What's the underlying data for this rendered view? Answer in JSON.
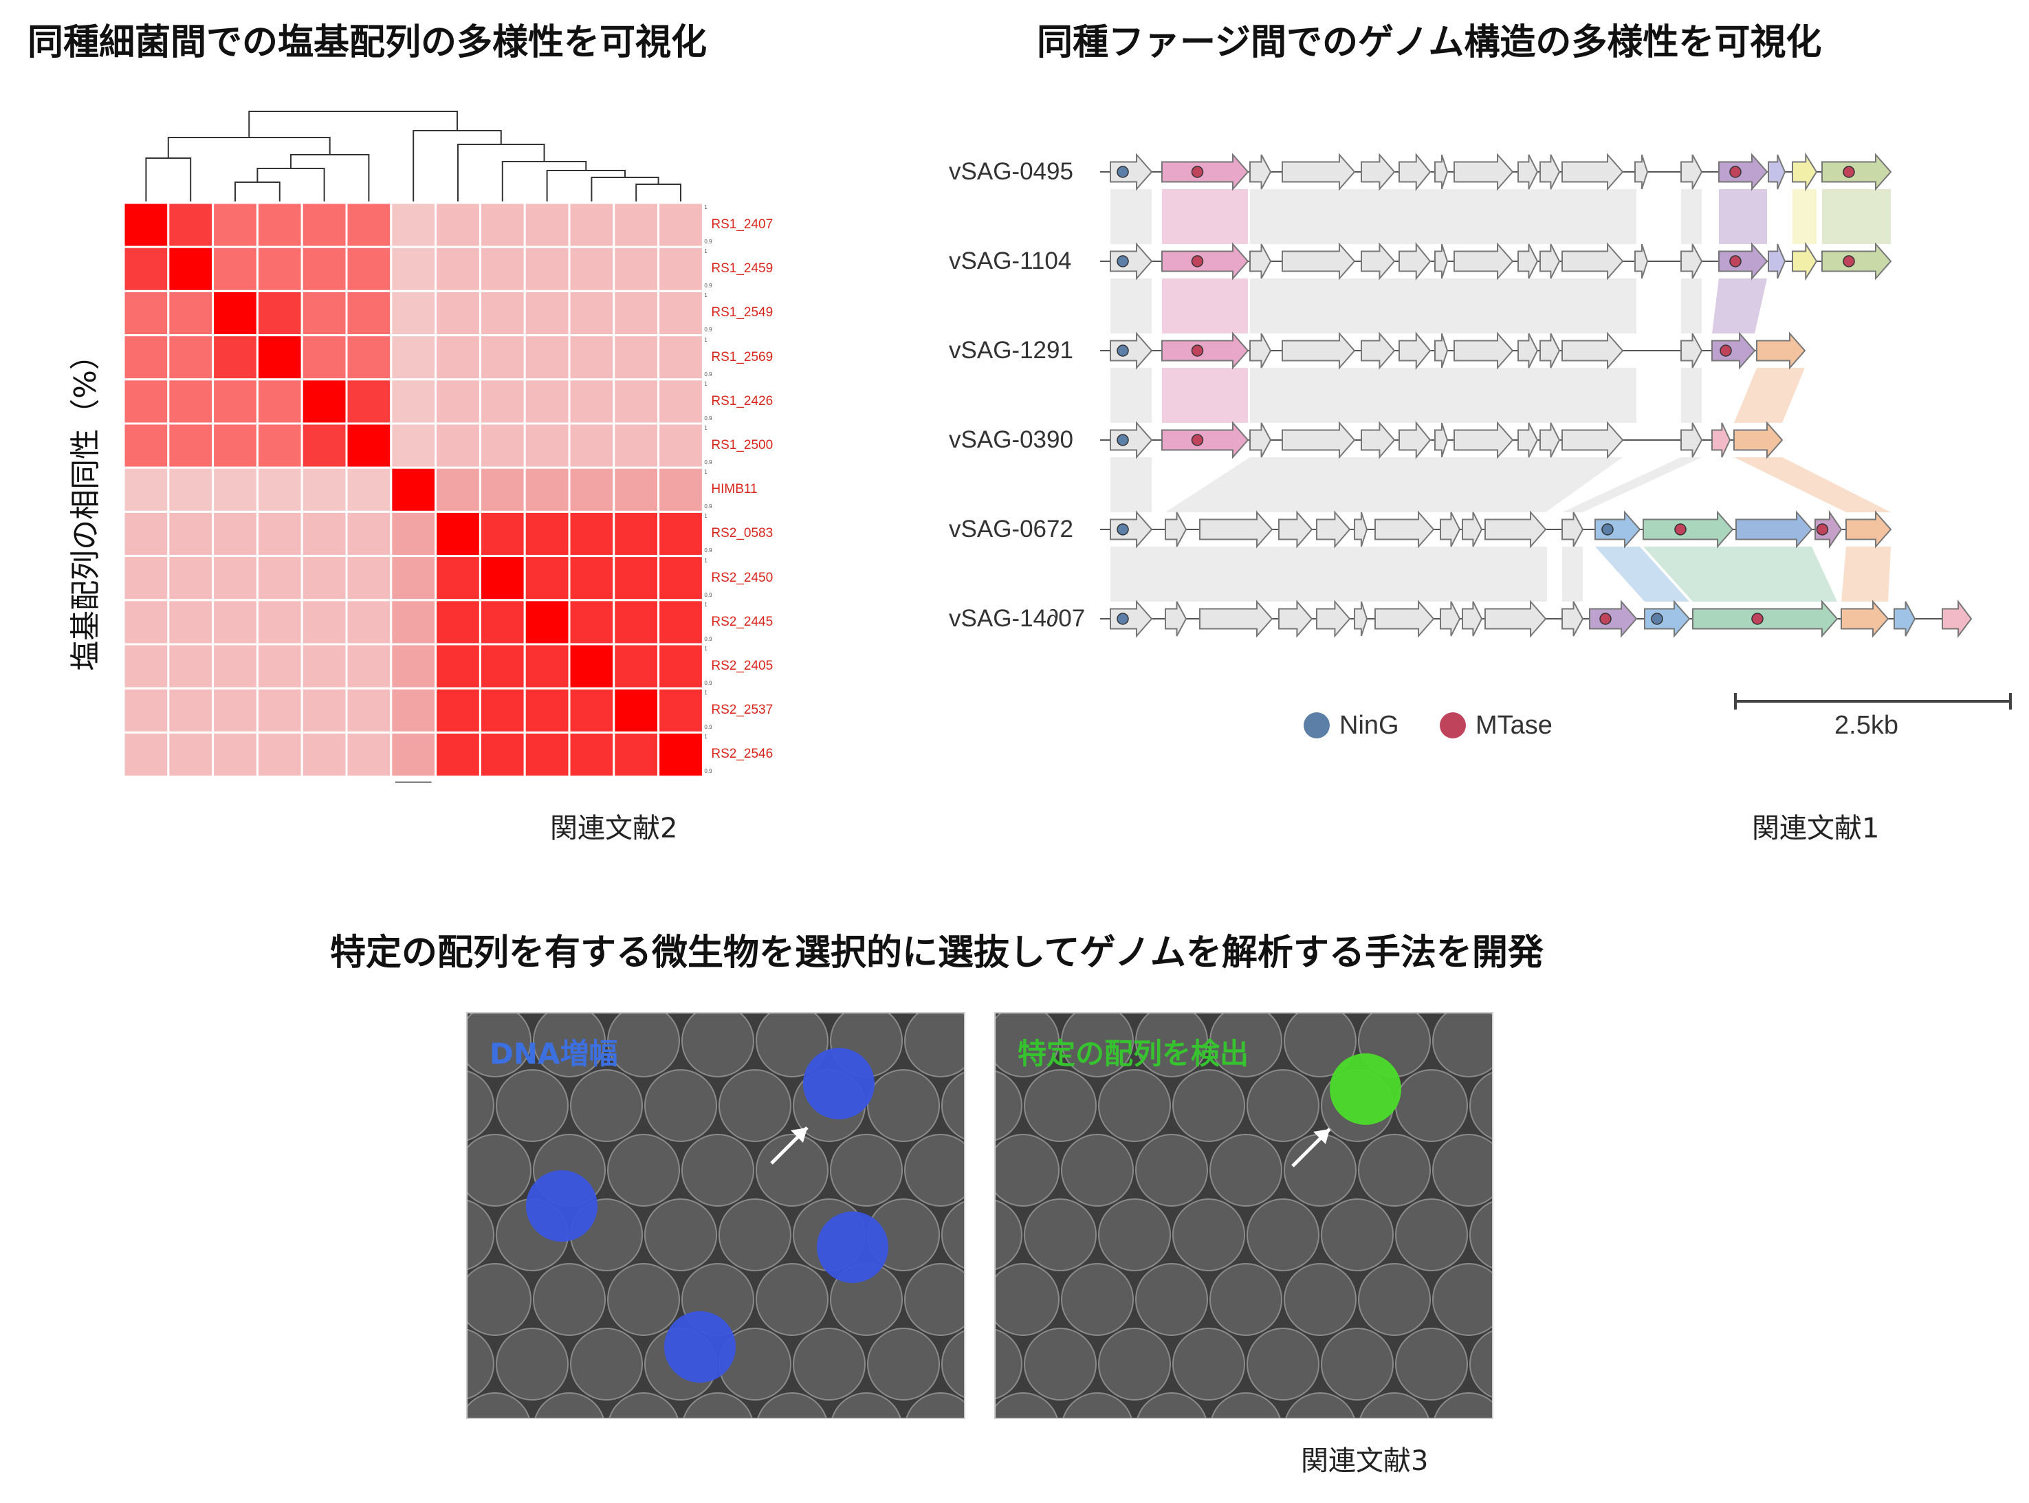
{
  "titles": {
    "top_left": "同種細菌間での塩基配列の多様性を可視化",
    "top_right": "同種ファージ間でのゲノム構造の多様性を可視化",
    "bottom": "特定の配列を有する微生物を選択的に選抜してゲノムを解析する手法を開発"
  },
  "heatmap": {
    "ylabel": "塩基配列の相同性（%）",
    "strains": [
      "RS1_2407",
      "RS1_2459",
      "RS1_2549",
      "RS1_2569",
      "RS1_2426",
      "RS1_2500",
      "HIMB11",
      "RS2_0583",
      "RS2_2450",
      "RS2_2445",
      "RS2_2405",
      "RS2_2537",
      "RS2_2546"
    ],
    "scale_ticks": [
      "1",
      "0.9"
    ],
    "reference": "関連文献2"
  },
  "genome": {
    "genomes": [
      "vSAG-0495",
      "vSAG-1104",
      "vSAG-1291",
      "vSAG-0390",
      "vSAG-0672",
      "vSAG-14∂07"
    ],
    "legend": {
      "ning": "NinG",
      "mtase": "MTase"
    },
    "scalebar_label": "2.5kb",
    "reference": "関連文献1"
  },
  "microscopy": {
    "left_label": "DNA増幅",
    "right_label": "特定の配列を検出",
    "reference": "関連文献3"
  },
  "colors": {
    "heat_strong": "#ff0000",
    "heat_mid": "#fa6e6e",
    "heat_weak": "#f4bcbc",
    "heat_label": "#d9261c",
    "ning": "#5b7fa6",
    "mtase": "#c0435c",
    "blue_signal": "#3a55e0",
    "green_signal": "#4bdc2a"
  }
}
